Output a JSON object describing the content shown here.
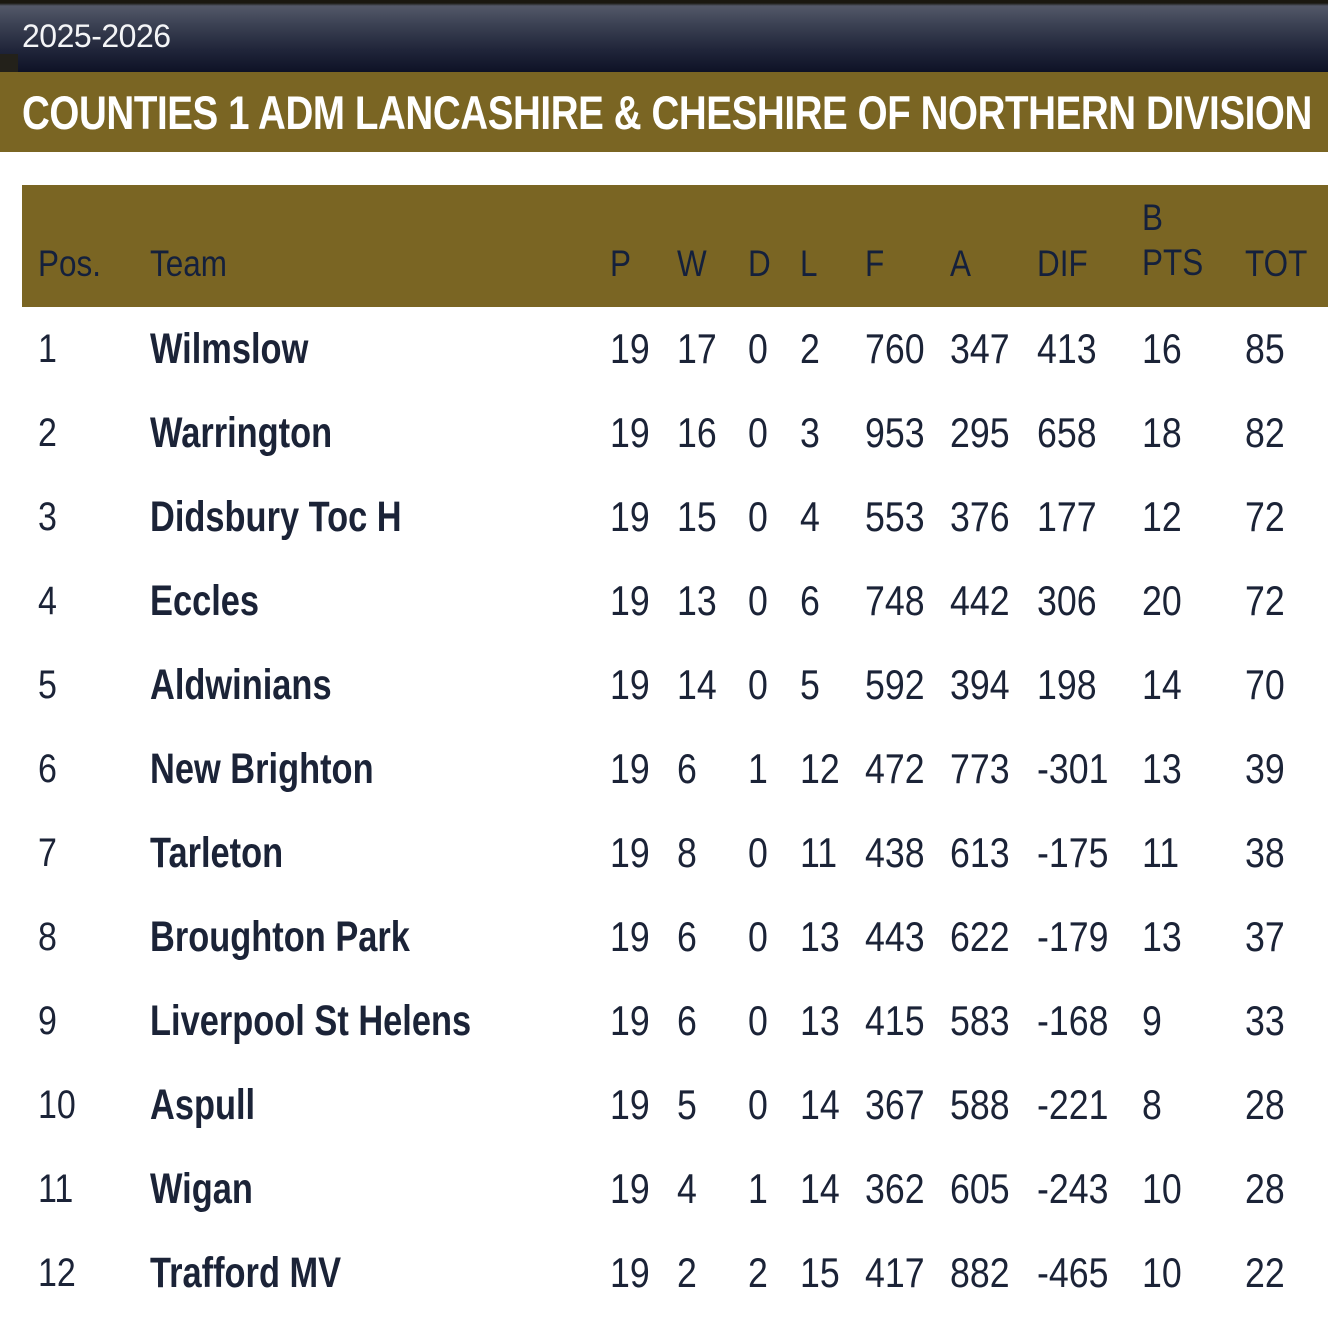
{
  "topbar": {
    "season": "2025-2026"
  },
  "banner": {
    "title": "COUNTIES 1 ADM LANCASHIRE & CHESHIRE OF NORTHERN DIVISION"
  },
  "table": {
    "headers": {
      "pos": "Pos.",
      "team": "Team",
      "p": "P",
      "w": "W",
      "d": "D",
      "l": "L",
      "f": "F",
      "a": "A",
      "dif": "DIF",
      "bpts_line1": "B",
      "bpts_line2": "PTS",
      "tot": "TOT"
    },
    "rows": [
      {
        "pos": "1",
        "team": "Wilmslow",
        "p": "19",
        "w": "17",
        "d": "0",
        "l": "2",
        "f": "760",
        "a": "347",
        "dif": "413",
        "bpts": "16",
        "tot": "85"
      },
      {
        "pos": "2",
        "team": "Warrington",
        "p": "19",
        "w": "16",
        "d": "0",
        "l": "3",
        "f": "953",
        "a": "295",
        "dif": "658",
        "bpts": "18",
        "tot": "82"
      },
      {
        "pos": "3",
        "team": "Didsbury Toc H",
        "p": "19",
        "w": "15",
        "d": "0",
        "l": "4",
        "f": "553",
        "a": "376",
        "dif": "177",
        "bpts": "12",
        "tot": "72"
      },
      {
        "pos": "4",
        "team": "Eccles",
        "p": "19",
        "w": "13",
        "d": "0",
        "l": "6",
        "f": "748",
        "a": "442",
        "dif": "306",
        "bpts": "20",
        "tot": "72"
      },
      {
        "pos": "5",
        "team": "Aldwinians",
        "p": "19",
        "w": "14",
        "d": "0",
        "l": "5",
        "f": "592",
        "a": "394",
        "dif": "198",
        "bpts": "14",
        "tot": "70"
      },
      {
        "pos": "6",
        "team": "New Brighton",
        "p": "19",
        "w": "6",
        "d": "1",
        "l": "12",
        "f": "472",
        "a": "773",
        "dif": "-301",
        "bpts": "13",
        "tot": "39"
      },
      {
        "pos": "7",
        "team": "Tarleton",
        "p": "19",
        "w": "8",
        "d": "0",
        "l": "11",
        "f": "438",
        "a": "613",
        "dif": "-175",
        "bpts": "11",
        "tot": "38"
      },
      {
        "pos": "8",
        "team": "Broughton Park",
        "p": "19",
        "w": "6",
        "d": "0",
        "l": "13",
        "f": "443",
        "a": "622",
        "dif": "-179",
        "bpts": "13",
        "tot": "37"
      },
      {
        "pos": "9",
        "team": "Liverpool St Helens",
        "p": "19",
        "w": "6",
        "d": "0",
        "l": "13",
        "f": "415",
        "a": "583",
        "dif": "-168",
        "bpts": "9",
        "tot": "33"
      },
      {
        "pos": "10",
        "team": "Aspull",
        "p": "19",
        "w": "5",
        "d": "0",
        "l": "14",
        "f": "367",
        "a": "588",
        "dif": "-221",
        "bpts": "8",
        "tot": "28"
      },
      {
        "pos": "11",
        "team": "Wigan",
        "p": "19",
        "w": "4",
        "d": "1",
        "l": "14",
        "f": "362",
        "a": "605",
        "dif": "-243",
        "bpts": "10",
        "tot": "28"
      },
      {
        "pos": "12",
        "team": "Trafford MV",
        "p": "19",
        "w": "2",
        "d": "2",
        "l": "15",
        "f": "417",
        "a": "882",
        "dif": "-465",
        "bpts": "10",
        "tot": "22"
      }
    ]
  },
  "colors": {
    "gold": "#7A6523",
    "header_text": "#14203C",
    "row_text": "#1B2337",
    "title_text": "#FFFFFF",
    "season_text": "#F4F5F7",
    "topbar_top": "#535868",
    "topbar_bottom": "#0E1226",
    "page_bg": "#FFFFFF"
  }
}
